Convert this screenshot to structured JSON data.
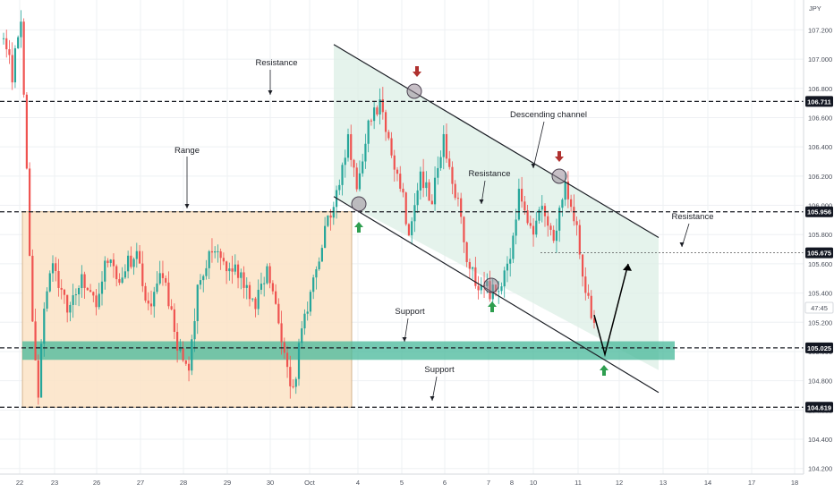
{
  "chart_data": {
    "type": "candlestick",
    "currency_label": "JPY",
    "y_range": [
      104.18,
      107.38
    ],
    "y_ticks": [
      104.2,
      104.4,
      104.6,
      104.8,
      105.0,
      105.2,
      105.4,
      105.6,
      105.8,
      106.0,
      106.2,
      106.4,
      106.6,
      106.8,
      107.0,
      107.2
    ],
    "price_badges": [
      {
        "value": 106.711,
        "label": "106.711"
      },
      {
        "value": 105.956,
        "label": "105.956"
      },
      {
        "value": 105.675,
        "label": "105.675"
      },
      {
        "value": 105.025,
        "label": "105.025"
      },
      {
        "value": 104.619,
        "label": "104.619"
      }
    ],
    "countdown_badge": {
      "value": 105.3,
      "label": "47:45"
    },
    "x_labels": [
      "22",
      "23",
      "26",
      "27",
      "28",
      "29",
      "30",
      "Oct",
      "4",
      "5",
      "6",
      "7",
      "8",
      "10",
      "11",
      "12",
      "13",
      "14",
      "17",
      "18"
    ],
    "levels": [
      {
        "name": "resistance-line",
        "value": 106.711,
        "style": "dashed"
      },
      {
        "name": "range-top-line",
        "value": 105.956,
        "style": "dashed"
      },
      {
        "name": "minor-resistance-line",
        "value": 105.675,
        "style": "dotted"
      },
      {
        "name": "support-line",
        "value": 105.025,
        "style": "dashed"
      },
      {
        "name": "range-bottom-line",
        "value": 104.619,
        "style": "dashed"
      }
    ],
    "range_box": {
      "x_from": "22",
      "x_to": "4",
      "top": 105.956,
      "bottom": 104.619
    },
    "support_zone": {
      "top": 105.07,
      "bottom": 104.98
    },
    "channel": {
      "upper_start": 107.1,
      "upper_end": 105.78,
      "lower_start": 106.06,
      "lower_end": 104.72
    },
    "annotations": [
      {
        "text": "Resistance"
      },
      {
        "text": "Range"
      },
      {
        "text": "Descending channel"
      },
      {
        "text": "Resistance"
      },
      {
        "text": "Resistance"
      },
      {
        "text": "Support"
      },
      {
        "text": "Support"
      }
    ],
    "markers": [
      {
        "type": "up-arrow",
        "color": "#2e9e4f"
      },
      {
        "type": "down-arrow",
        "color": "#b0312f"
      },
      {
        "type": "up-arrow",
        "color": "#2e9e4f"
      },
      {
        "type": "down-arrow",
        "color": "#b0312f"
      },
      {
        "type": "up-arrow",
        "color": "#2e9e4f"
      }
    ],
    "projection": [
      105.25,
      104.98,
      105.6
    ],
    "candle_seed": 20211004,
    "anchors": [
      [
        0,
        107.2
      ],
      [
        3,
        106.9
      ],
      [
        6,
        107.3
      ],
      [
        8,
        106.2
      ],
      [
        10,
        105.2
      ],
      [
        12,
        104.7
      ],
      [
        14,
        105.35
      ],
      [
        17,
        105.55
      ],
      [
        22,
        105.3
      ],
      [
        27,
        105.5
      ],
      [
        32,
        105.3
      ],
      [
        36,
        105.65
      ],
      [
        40,
        105.5
      ],
      [
        46,
        105.7
      ],
      [
        50,
        105.3
      ],
      [
        55,
        105.55
      ],
      [
        60,
        105.05
      ],
      [
        64,
        104.85
      ],
      [
        67,
        105.45
      ],
      [
        72,
        105.72
      ],
      [
        77,
        105.6
      ],
      [
        82,
        105.5
      ],
      [
        87,
        105.3
      ],
      [
        91,
        105.55
      ],
      [
        96,
        105.1
      ],
      [
        100,
        104.7
      ],
      [
        103,
        105.2
      ],
      [
        107,
        105.45
      ],
      [
        111,
        105.8
      ],
      [
        115,
        106.1
      ],
      [
        119,
        106.45
      ],
      [
        122,
        106.1
      ],
      [
        126,
        106.55
      ],
      [
        130,
        106.72
      ],
      [
        134,
        106.35
      ],
      [
        137,
        106.15
      ],
      [
        140,
        105.8
      ],
      [
        144,
        106.2
      ],
      [
        148,
        106.05
      ],
      [
        152,
        106.45
      ],
      [
        155,
        106.2
      ],
      [
        158,
        105.9
      ],
      [
        161,
        105.55
      ],
      [
        165,
        105.45
      ],
      [
        169,
        105.4
      ],
      [
        172,
        105.5
      ],
      [
        175,
        105.65
      ],
      [
        178,
        106.1
      ],
      [
        182,
        105.8
      ],
      [
        186,
        106.0
      ],
      [
        190,
        105.75
      ],
      [
        194,
        106.17
      ],
      [
        198,
        105.85
      ],
      [
        201,
        105.4
      ],
      [
        204,
        105.23
      ]
    ],
    "colors": {
      "up": "#26a69a",
      "down": "#ef5350",
      "badge": "#131722",
      "zone": "#47b89a",
      "channel_fill": "#dcefe6",
      "range_fill": "#fbe3c5"
    }
  }
}
